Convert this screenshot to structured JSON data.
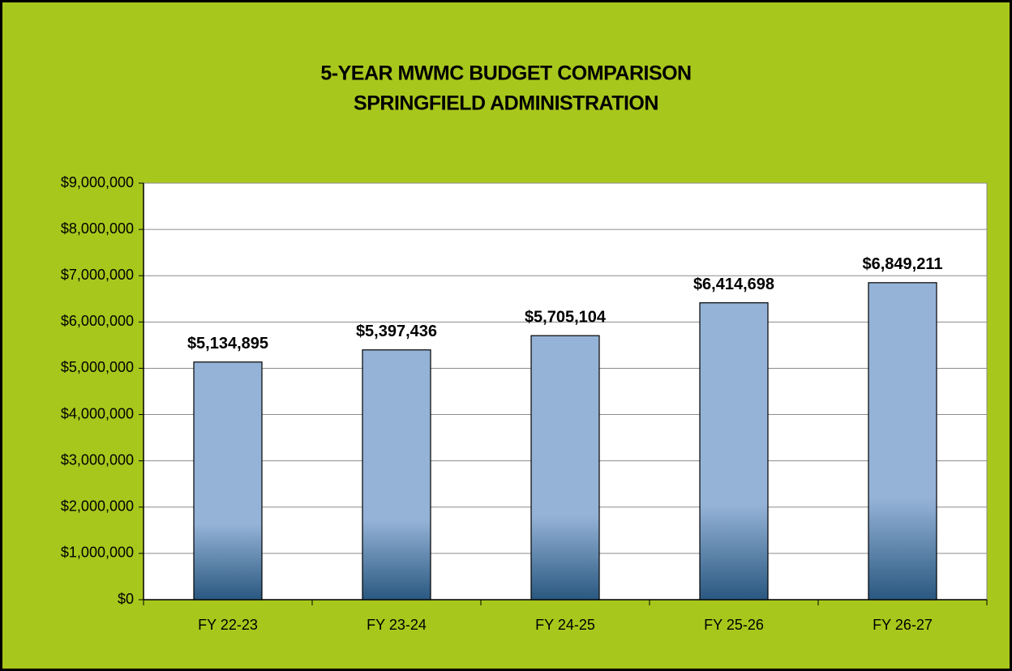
{
  "chart_data": {
    "type": "bar",
    "title": [
      "5-YEAR MWMC BUDGET COMPARISON",
      "SPRINGFIELD ADMINISTRATION"
    ],
    "categories": [
      "FY 22-23",
      "FY 23-24",
      "FY 24-25",
      "FY 25-26",
      "FY 26-27"
    ],
    "values": [
      5134895,
      5397436,
      5705104,
      6414698,
      6849211
    ],
    "value_labels": [
      "$5,134,895",
      "$5,397,436",
      "$5,705,104",
      "$6,414,698",
      "$6,849,211"
    ],
    "color": "#95b3d7",
    "color_bottom": "#2a5880",
    "background": "#a8c71c",
    "ylim": [
      0,
      9000000
    ],
    "yticks": [
      {
        "value": 0,
        "label": "$0"
      },
      {
        "value": 1000000,
        "label": "$1,000,000"
      },
      {
        "value": 2000000,
        "label": "$2,000,000"
      },
      {
        "value": 3000000,
        "label": "$3,000,000"
      },
      {
        "value": 4000000,
        "label": "$4,000,000"
      },
      {
        "value": 5000000,
        "label": "$5,000,000"
      },
      {
        "value": 6000000,
        "label": "$6,000,000"
      },
      {
        "value": 7000000,
        "label": "$7,000,000"
      },
      {
        "value": 8000000,
        "label": "$8,000,000"
      },
      {
        "value": 9000000,
        "label": "$9,000,000"
      }
    ],
    "grid": true
  }
}
